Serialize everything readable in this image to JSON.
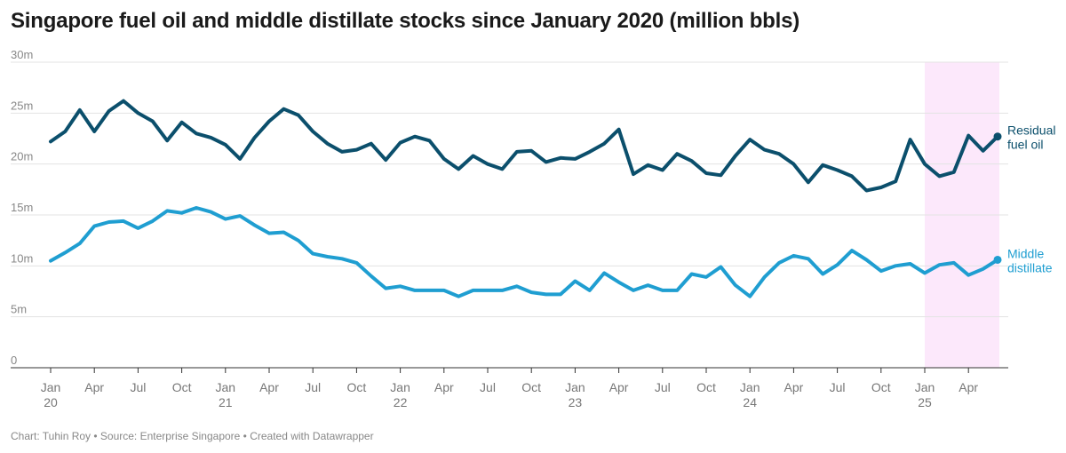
{
  "chart_data": {
    "type": "line",
    "title": "Singapore fuel oil and middle distillate stocks since January 2020 (million bbls)",
    "footer": "Chart: Tuhin Roy • Source: Enterprise Singapore • Created with Datawrapper",
    "ylim": [
      0,
      30
    ],
    "y_ticks": [
      0,
      5,
      10,
      15,
      20,
      25,
      30
    ],
    "y_tick_labels": [
      "0",
      "5m",
      "10m",
      "15m",
      "20m",
      "25m",
      "30m"
    ],
    "x_ticks": [
      {
        "month": 0,
        "line1": "Jan",
        "line2": "20"
      },
      {
        "month": 3,
        "line1": "Apr",
        "line2": ""
      },
      {
        "month": 6,
        "line1": "Jul",
        "line2": ""
      },
      {
        "month": 9,
        "line1": "Oct",
        "line2": ""
      },
      {
        "month": 12,
        "line1": "Jan",
        "line2": "21"
      },
      {
        "month": 15,
        "line1": "Apr",
        "line2": ""
      },
      {
        "month": 18,
        "line1": "Jul",
        "line2": ""
      },
      {
        "month": 21,
        "line1": "Oct",
        "line2": ""
      },
      {
        "month": 24,
        "line1": "Jan",
        "line2": "22"
      },
      {
        "month": 27,
        "line1": "Apr",
        "line2": ""
      },
      {
        "month": 30,
        "line1": "Jul",
        "line2": ""
      },
      {
        "month": 33,
        "line1": "Oct",
        "line2": ""
      },
      {
        "month": 36,
        "line1": "Jan",
        "line2": "23"
      },
      {
        "month": 39,
        "line1": "Apr",
        "line2": ""
      },
      {
        "month": 42,
        "line1": "Jul",
        "line2": ""
      },
      {
        "month": 45,
        "line1": "Oct",
        "line2": ""
      },
      {
        "month": 48,
        "line1": "Jan",
        "line2": "24"
      },
      {
        "month": 51,
        "line1": "Apr",
        "line2": ""
      },
      {
        "month": 54,
        "line1": "Jul",
        "line2": ""
      },
      {
        "month": 57,
        "line1": "Oct",
        "line2": ""
      },
      {
        "month": 60,
        "line1": "Jan",
        "line2": "25"
      },
      {
        "month": 63,
        "line1": "Apr",
        "line2": ""
      }
    ],
    "highlight_range": [
      60,
      65
    ],
    "highlight_color": "#fce8fb",
    "series": [
      {
        "label_lines": [
          "Residual",
          "fuel oil"
        ],
        "color": "#0b4f6c",
        "values": [
          22.2,
          23.2,
          25.3,
          23.2,
          25.2,
          26.2,
          25.0,
          24.2,
          22.3,
          24.1,
          23.0,
          22.6,
          21.9,
          20.5,
          22.6,
          24.2,
          25.4,
          24.8,
          23.2,
          22.0,
          21.2,
          21.4,
          22.0,
          20.4,
          22.1,
          22.7,
          22.3,
          20.5,
          19.5,
          20.8,
          20.0,
          19.5,
          21.2,
          21.3,
          20.2,
          20.6,
          20.5,
          21.2,
          22.0,
          23.4,
          19.0,
          19.9,
          19.4,
          21.0,
          20.3,
          19.1,
          18.9,
          20.8,
          22.4,
          21.4,
          21.0,
          20.0,
          18.2,
          19.9,
          19.4,
          18.8,
          17.4,
          17.7,
          18.3,
          22.4,
          20.0,
          18.8,
          19.2,
          22.8,
          21.3,
          22.7
        ]
      },
      {
        "label_lines": [
          "Middle",
          "distillate"
        ],
        "color": "#1f9ed1",
        "values": [
          10.5,
          11.3,
          12.2,
          13.9,
          14.3,
          14.4,
          13.7,
          14.4,
          15.4,
          15.2,
          15.7,
          15.3,
          14.6,
          14.9,
          14.0,
          13.2,
          13.3,
          12.5,
          11.2,
          10.9,
          10.7,
          10.3,
          9.0,
          7.8,
          8.0,
          7.6,
          7.6,
          7.6,
          7.0,
          7.6,
          7.6,
          7.6,
          8.0,
          7.4,
          7.2,
          7.2,
          8.5,
          7.6,
          9.3,
          8.4,
          7.6,
          8.1,
          7.6,
          7.6,
          9.2,
          8.9,
          9.9,
          8.1,
          7.0,
          8.9,
          10.3,
          11.0,
          10.7,
          9.2,
          10.1,
          11.5,
          10.6,
          9.5,
          10.0,
          10.2,
          9.3,
          10.1,
          10.3,
          9.1,
          9.7,
          10.6
        ]
      }
    ]
  }
}
